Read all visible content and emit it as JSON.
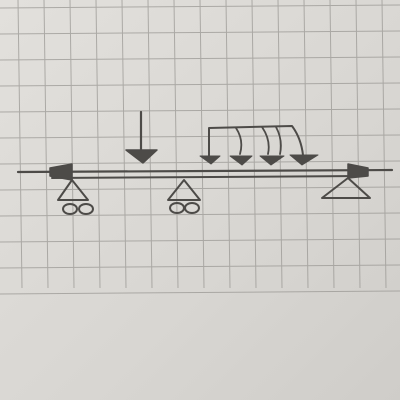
{
  "sheet": {
    "paper_color": "#dcdad6",
    "grid_color": "#9a9894",
    "ink_color": "#4d4b48"
  },
  "diagram": {
    "kind": "beam-loading-sketch",
    "beam": {
      "orientation": "horizontal",
      "lines": 2
    },
    "end_arrows": [
      "left",
      "right"
    ],
    "supports": [
      {
        "type": "roller",
        "position": "left-end"
      },
      {
        "type": "roller",
        "position": "middle"
      },
      {
        "type": "pin",
        "position": "right-end"
      }
    ],
    "point_load": {
      "direction": "down",
      "position": "left-span"
    },
    "distributed_load": {
      "direction": "down",
      "arrows": 4,
      "position": "right-span"
    }
  }
}
